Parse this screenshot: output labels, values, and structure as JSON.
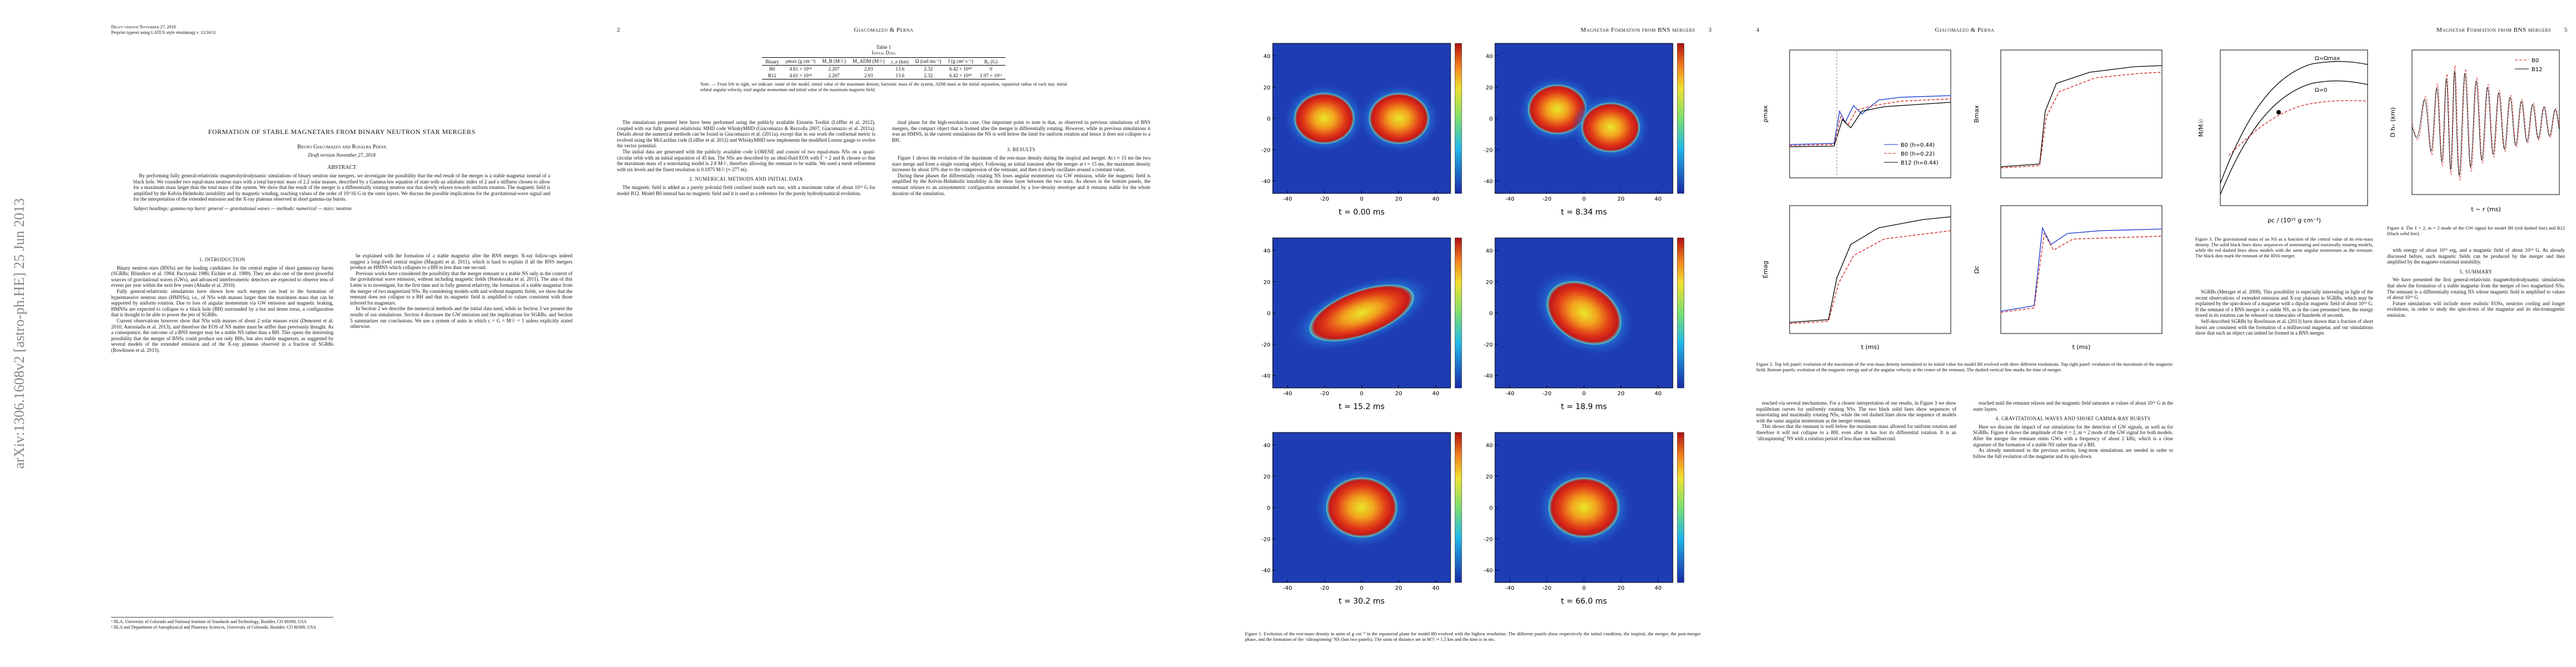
{
  "sidebar": "arXiv:1306.1608v2  [astro-ph.HE]  25 Jun 2013",
  "page1": {
    "draft": "Draft version November 27, 2018",
    "preprint": "Preprint typeset using LATEX style emulateapj v. 12/16/11",
    "title": "FORMATION OF STABLE MAGNETARS FROM BINARY NEUTRON STAR MERGERS",
    "authors": "Bruno Giacomazzo and Rosalba Perna",
    "date": "Draft version November 27, 2018",
    "abstract_heading": "ABSTRACT",
    "abstract": "By performing fully general-relativistic magnetohydrodynamic simulations of binary neutron star mergers, we investigate the possibility that the end result of the merger is a stable magnetar instead of a black hole. We consider two equal-mass neutron stars with a total baryonic mass of 2.2 solar masses, described by a Gamma-law equation of state with an adiabatic index of 2 and a stiffness chosen to allow for a maximum mass larger than the total mass of the system. We show that the result of the merger is a differentially rotating neutron star that slowly relaxes towards uniform rotation. The magnetic field is amplified by the Kelvin-Helmholtz instability and by magnetic winding, reaching values of the order of 10^16 G in the outer layers. We discuss the possible implications for the gravitational-wave signal and for the interpretation of the extended emission and the X-ray plateaus observed in short gamma-ray bursts.",
    "keywords": "Subject headings: gamma-ray burst: general — gravitational waves — methods: numerical — stars: neutron",
    "col1": [
      {
        "heading": "1. INTRODUCTION"
      },
      "Binary neutron stars (BNSs) are the leading candidates for the central engine of short gamma-ray bursts (SGRBs; Blinnikov et al. 1984; Paczynski 1986; Eichler et al. 1989). They are also one of the most powerful sources of gravitational waves (GWs), and advanced interferometric detectors are expected to observe tens of events per year within the next few years (Abadie et al. 2010).",
      "Fully general-relativistic simulations have shown how such mergers can lead to the formation of hypermassive neutron stars (HMNSs), i.e., of NSs with masses larger than the maximum mass that can be supported by uniform rotation. Due to loss of angular momentum via GW emission and magnetic braking, HMNSs are expected to collapse to a black hole (BH) surrounded by a hot and dense torus, a configuration that is thought to be able to power the jets of SGRBs.",
      "Current observations however show that NSs with masses of about 2 solar masses exist (Demorest et al. 2010; Antoniadis et al. 2013), and therefore the EOS of NS matter must be stiffer than previously thought. As a consequence, the outcome of a BNS merger may be a stable NS rather than a BH. This opens the interesting possibility that the merger of BNSs could produce not only BHs, but also stable magnetars, as suggested by several models of the extended emission and of the X-ray plateaus observed in a fraction of SGRBs (Rowlinson et al. 2013)."
    ],
    "col2": [
      "be explained with the formation of a stable magnetar after the BNS merger. X-ray follow-ups indeed suggest a long-lived central engine (Margutti et al. 2011), which is hard to explain if all the BNS mergers produce an HMNS which collapses to a BH in less than one second.",
      "Previous works have considered the possibility that the merger remnant is a stable NS only in the context of the gravitational wave emission, without including magnetic fields (Hotokezaka et al. 2011). The aim of this Letter is to investigate, for the first time and in fully general relativity, the formation of a stable magnetar from the merger of two magnetized NSs. By considering models with and without magnetic fields, we show that the remnant does not collapse to a BH and that its magnetic field is amplified to values consistent with those inferred for magnetars.",
      "In Section 2 we describe the numerical methods and the initial data used, while in Section 3 we present the results of our simulations. Section 4 discusses the GW emission and the implications for SGRBs, and Section 5 summarizes our conclusions. We use a system of units in which c = G = M☉ = 1 unless explicitly stated otherwise."
    ],
    "footnotes": [
      "¹ JILA, University of Colorado and National Institute of Standards and Technology, Boulder, CO 80309, USA",
      "² JILA and Department of Astrophysical and Planetary Sciences, University of Colorado, Boulder, CO 80309, USA"
    ]
  },
  "page2": {
    "number": "2",
    "running": "Giacomazzo & Perna",
    "table": {
      "label": "Table 1",
      "title": "Initial Data",
      "header": [
        "Binary",
        "ρmax (g cm⁻³)",
        "M_B (M☉)",
        "M_ADM (M☉)",
        "r_e (km)",
        "Ω (rad ms⁻¹)",
        "J (g cm² s⁻¹)",
        "B₀ (G)"
      ],
      "rows": [
        [
          "B0",
          "4.61 × 10¹⁴",
          "2.207",
          "2.03",
          "13.6",
          "2.32",
          "6.42 × 10⁴⁹",
          "0"
        ],
        [
          "B12",
          "4.61 × 10¹⁴",
          "2.207",
          "2.03",
          "13.6",
          "2.32",
          "6.42 × 10⁴⁹",
          "1.97 × 10¹²"
        ]
      ],
      "note": "Note. — From left to right, we indicate: name of the model, initial value of the maximum density, baryonic mass of the system, ADM mass at the initial separation, equatorial radius of each star, initial orbital angular velocity, total angular momentum and initial value of the maximum magnetic field."
    },
    "col1": [
      "The simulations presented here have been performed using the publicly available Einstein Toolkit (Löffler et al. 2012), coupled with our fully general relativistic MHD code WhiskyMHD (Giacomazzo & Rezzolla 2007; Giacomazzo et al. 2011a). Details about the numerical methods can be found in Giacomazzo et al. (2011a), except that in our work the conformal metric is evolved using the McLachlan code (Löffler et al. 2012) and WhiskyMHD now implements the modified Lorenz gauge to evolve the vector potential.",
      "The initial data are generated with the publicly available code LORENE and consist of two equal-mass NSs on a quasi-circular orbit with an initial separation of 45 km. The NSs are described by an ideal-fluid EOS with Γ = 2 and K chosen so that the maximum mass of a nonrotating model is 2.8 M☉, therefore allowing the remnant to be stable. We used a mesh refinement with six levels and the finest resolution is 0.1875 M☉ (≈ 277 m).",
      {
        "heading": "2. NUMERICAL METHODS AND INITIAL DATA"
      },
      "The magnetic field is added as a purely poloidal field confined inside each star, with a maximum value of about 10¹² G for model B12. Model B0 instead has no magnetic field and it is used as a reference for the purely hydrodynamical evolution."
    ],
    "col2": [
      "tinal phase for the high-resolution case. One important point to note is that, as observed in previous simulations of BNS mergers, the compact object that is formed after the merger is differentially rotating. However, while in previous simulations it was an HMNS, in the current simulations the NS is well below the limit for uniform rotation and hence it does not collapse to a BH.",
      {
        "heading": "3. RESULTS"
      },
      "Figure 1 shows the evolution of the maximum of the rest-mass density during the inspiral and merger. At t ≈ 15 ms the two stars merge and form a single rotating object. Following an initial transient after the merger at t ≈ 15 ms, the maximum density increases by about 10% due to the compression of the remnant, and then it slowly oscillates around a constant value.",
      "During these phases the differentially rotating NS loses angular momentum via GW emission, while the magnetic field is amplified by the Kelvin-Helmholtz instability in the shear layer between the two stars. As shown in the bottom panels, the remnant relaxes to an axisymmetric configuration surrounded by a low-density envelope and it remains stable for the whole duration of the simulation."
    ]
  },
  "page3": {
    "running": "Magnetar Formation from BNS mergers",
    "number": "3",
    "figure": {
      "panels": [
        "t = 0.00 ms",
        "t = 8.34 ms",
        "t = 15.2 ms",
        "t = 18.9 ms",
        "t = 30.2 ms",
        "t = 66.0 ms"
      ],
      "ticks": [
        -40,
        -20,
        0,
        20,
        40
      ],
      "lim": [
        -48,
        48
      ],
      "caption": "Figure 1. Evolution of the rest-mass density in units of g cm⁻³ in the equatorial plane for model B0 evolved with the highest resolution. The different panels show respectively the initial condition, the inspiral, the merger, the post-merger phase, and the formation of the ‘ultraspinning’ NS (last two panels). The units of distance are in M☉ ≈ 1.5 km and the time is in ms."
    }
  },
  "page4": {
    "number": "4",
    "running": "Giacomazzo & Perna",
    "figure": {
      "ylabels": [
        "ρmax",
        "Bmax",
        "Emag",
        "Ωc"
      ],
      "xlabel": "t (ms)",
      "legend": [
        "B0 (h=0.44)",
        "B0 (h=0.22)",
        "B12 (h=0.44)"
      ],
      "caption": "Figure 2. Top left panel: evolution of the maximum of the rest-mass density normalized to its initial value for model B0 evolved with three different resolutions. Top right panel: evolution of the maximum of the magnetic field. Bottom panels: evolution of the magnetic energy and of the angular velocity at the center of the remnant. The dashed vertical line marks the time of merger."
    },
    "col1": [
      "reached via several mechanisms. For a clearer interpretation of our results, in Figure 3 we show equilibrium curves for uniformly rotating NSs. The two black solid lines show sequences of nonrotating and maximally rotating NSs, while the red dashed lines show the sequence of models with the same angular momentum as the merger remnant.",
      "This shows that the remnant is well below the maximum mass allowed for uniform rotation and therefore it will not collapse to a BH, even after it has lost its differential rotation. It is an ‘ultraspinning’ NS with a rotation period of less than one millisecond."
    ],
    "col2": [
      "reached until the remnant relaxes and the magnetic field saturates at values of about 10¹⁶ G in the outer layers.",
      {
        "heading": "4. GRAVITATIONAL WAVES AND SHORT GAMMA-RAY BURSTS"
      },
      "Here we discuss the impact of our simulations for the detection of GW signals, as well as for SGRBs. Figure 4 shows the amplitude of the ℓ = 2, m = 2 mode of the GW signal for both models. After the merger the remnant emits GWs with a frequency of about 2 kHz, which is a clear signature of the formation of a stable NS rather than of a BH.",
      "As already mentioned in the previous section, long-term simulations are needed in order to follow the full evolution of the magnetar and its spin-down."
    ]
  },
  "page5": {
    "running": "Magnetar Formation from BNS mergers",
    "number": "5",
    "fig3": {
      "xlabel": "ρc / (10¹⁵ g cm⁻³)",
      "ylabel": "M/M☉",
      "curves": [
        "Ω=0",
        "Ω=Ωmax"
      ],
      "caption": "Figure 3. The gravitational mass of an NS as a function of the central value of its rest-mass density. The solid black lines show sequences of nonrotating and maximally rotating models, while the red dashed lines show models with the same angular momentum as the remnant. The black dots mark the remnant of the BNS merger."
    },
    "fig4": {
      "legend": [
        "B0",
        "B12"
      ],
      "xlabel": "t − r (ms)",
      "ylabel": "D h₊ (km)",
      "caption": "Figure 4. The ℓ = 2, m = 2 mode of the GW signal for model B0 (red dashed line) and B12 (black solid line)."
    },
    "col1": [
      "SGRBs (Metzger et al. 2008). This possibility is especially interesting in light of the recent observations of extended emission and X-ray plateaus in SGRBs, which may be explained by the spin-down of a magnetar with a dipolar magnetic field of about 10¹⁵ G. If the remnant of a BNS merger is a stable NS, as in the case presented here, the energy stored in its rotation can be released on timescales of hundreds of seconds.",
      "Self-described SGRBs by Rowlinson et al. (2013) have shown that a fraction of short bursts are consistent with the formation of a millisecond magnetar, and our simulations show that such an object can indeed be formed in a BNS merger."
    ],
    "col2": [
      "with energy of about 10⁵² erg, and a magnetic field of about 10¹⁵ G. As already discussed before, such magnetic fields can be produced by the merger and then amplified by the magneto-rotational instability.",
      {
        "heading": "5. SUMMARY"
      },
      "We have presented the first general-relativistic magnetohydrodynamic simulations that show the formation of a stable magnetar from the merger of two magnetized NSs. The remnant is a differentially rotating NS whose magnetic field is amplified to values of about 10¹⁶ G.",
      "Future simulations will include more realistic EOSs, neutrino cooling and longer evolutions, in order to study the spin-down of the magnetar and its electromagnetic emission."
    ]
  }
}
